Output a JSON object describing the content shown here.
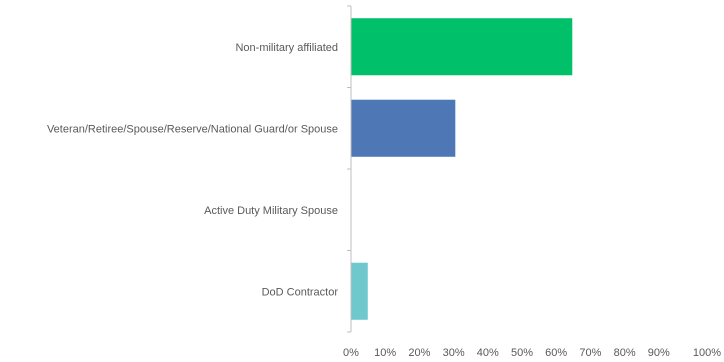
{
  "chart_data": {
    "type": "bar",
    "orientation": "horizontal",
    "categories": [
      "Non-military affiliated",
      "Veteran/Retiree/Spouse/Reserve/National Guard/or Spouse",
      "Active Duty Military Spouse",
      "DoD Contractor"
    ],
    "values": [
      64.7,
      30.5,
      0,
      4.9
    ],
    "colors": [
      "#00c06a",
      "#4e78b5",
      "#4bacc6",
      "#6fc8cc"
    ],
    "xlim": [
      0,
      100
    ],
    "x_ticks": [
      "0%",
      "10%",
      "20%",
      "30%",
      "40%",
      "50%",
      "60%",
      "70%",
      "80%",
      "90%",
      "100%"
    ],
    "grid": false,
    "legend": "none",
    "title": "",
    "xlabel": "",
    "ylabel": ""
  }
}
